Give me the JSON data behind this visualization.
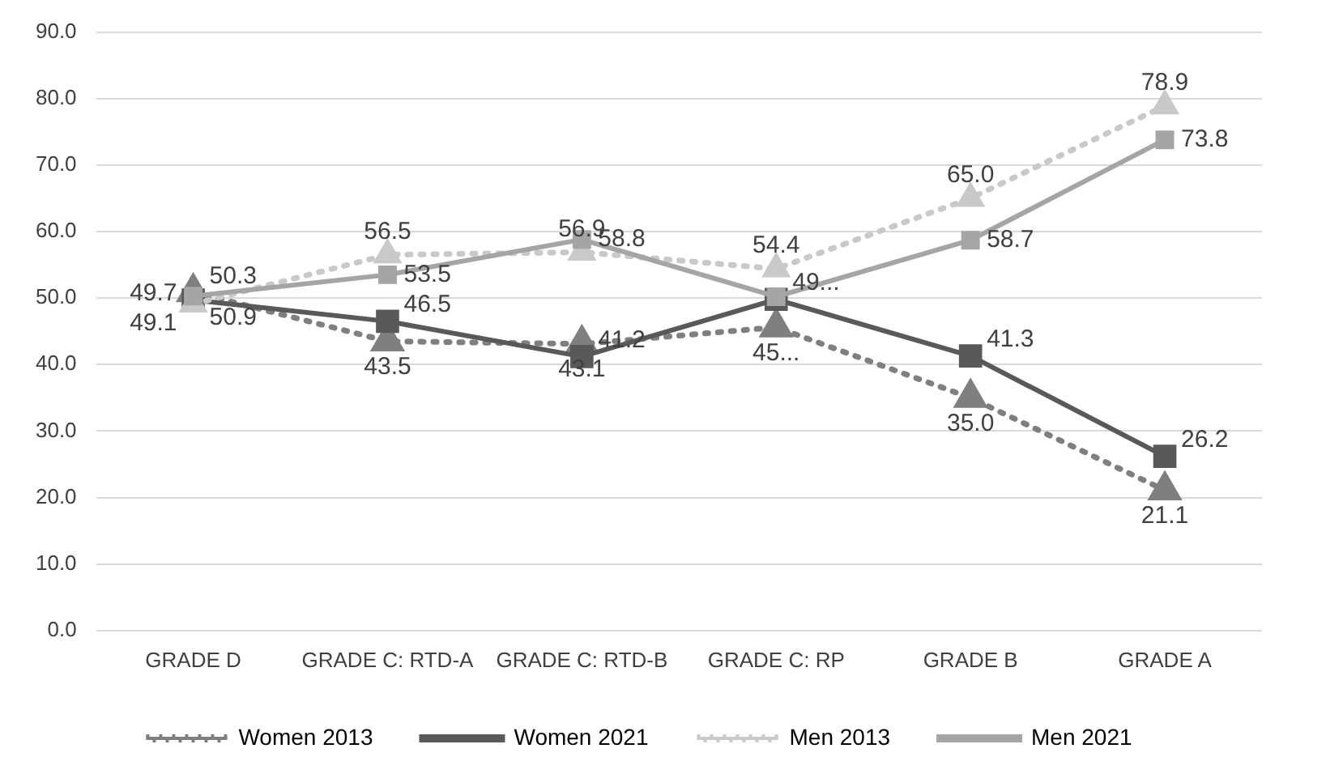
{
  "chart_data": {
    "type": "line",
    "categories": [
      "GRADE D",
      "GRADE C: RTD-A",
      "GRADE C: RTD-B",
      "GRADE C: RP",
      "GRADE B",
      "GRADE A"
    ],
    "series": [
      {
        "name": "Women 2013",
        "color": "#7f7f7f",
        "line_style": "dotted",
        "marker": "triangle",
        "values": [
          50.9,
          43.5,
          43.1,
          45.6,
          35.0,
          21.1
        ],
        "value_labels": [
          "50.9",
          "43.5",
          "43.1",
          "45...",
          "35.0",
          "21.1"
        ]
      },
      {
        "name": "Women 2021",
        "color": "#595959",
        "line_style": "solid",
        "marker": "square",
        "values": [
          49.7,
          46.5,
          41.2,
          49.8,
          41.3,
          26.2
        ],
        "value_labels": [
          "49.7",
          "46.5",
          "41.2",
          "49...",
          "41.3",
          "26.2"
        ]
      },
      {
        "name": "Men 2013",
        "color": "#c9c9c9",
        "line_style": "dotted",
        "marker": "triangle",
        "values": [
          49.1,
          56.5,
          56.9,
          54.4,
          65.0,
          78.9
        ],
        "value_labels": [
          "49.1",
          "56.5",
          "56.9",
          "54.4",
          "65.0",
          "78.9"
        ]
      },
      {
        "name": "Men 2021",
        "color": "#a5a5a5",
        "line_style": "solid",
        "marker": "square",
        "values": [
          50.3,
          53.5,
          58.8,
          50.2,
          58.7,
          73.8
        ],
        "value_labels": [
          "50.3",
          "53.5",
          "58.8",
          null,
          "58.7",
          "73.8"
        ]
      }
    ],
    "ylim": [
      0,
      90
    ],
    "yticks": [
      {
        "value": 0,
        "label": "0.0"
      },
      {
        "value": 10,
        "label": "10.0"
      },
      {
        "value": 20,
        "label": "20.0"
      },
      {
        "value": 30,
        "label": "30.0"
      },
      {
        "value": 40,
        "label": "40.0"
      },
      {
        "value": 50,
        "label": "50.0"
      },
      {
        "value": 60,
        "label": "60.0"
      },
      {
        "value": 70,
        "label": "70.0"
      },
      {
        "value": 80,
        "label": "80.0"
      },
      {
        "value": 90,
        "label": "90.0"
      }
    ],
    "grid": "y",
    "legend": "bottom"
  }
}
